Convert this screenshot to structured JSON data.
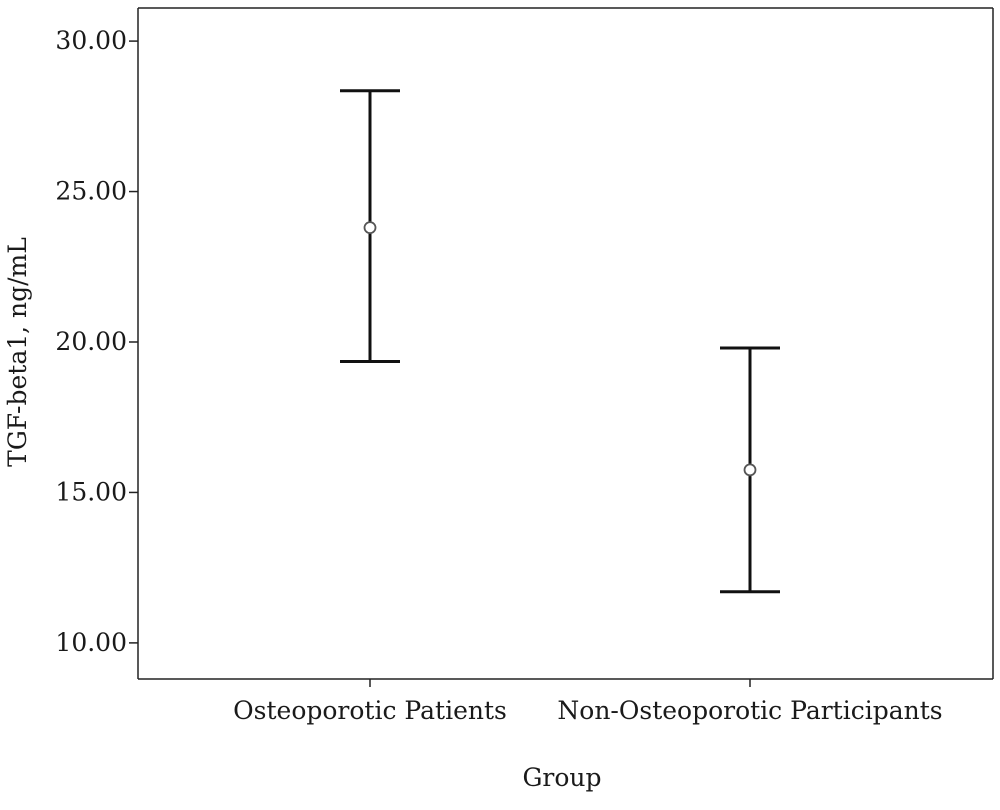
{
  "chart_data": {
    "type": "errorbar",
    "title": "",
    "xlabel": "Group",
    "ylabel": "TGF-beta1, ng/mL",
    "categories": [
      "Osteoporotic Patients",
      "Non-Osteoporotic Participants"
    ],
    "series": [
      {
        "means": [
          23.8,
          15.75
        ],
        "lower": [
          19.35,
          11.7
        ],
        "upper": [
          28.35,
          19.8
        ]
      }
    ],
    "yticks": [
      10,
      15,
      20,
      25,
      30
    ],
    "ytick_labels": [
      "10.00",
      "15.00",
      "20.00",
      "25.00",
      "30.00"
    ],
    "ylim": [
      8.8,
      31.1
    ],
    "grid": false,
    "colors": {
      "axis": "#222222",
      "marker": "#555555",
      "errorbar": "#111111"
    }
  }
}
